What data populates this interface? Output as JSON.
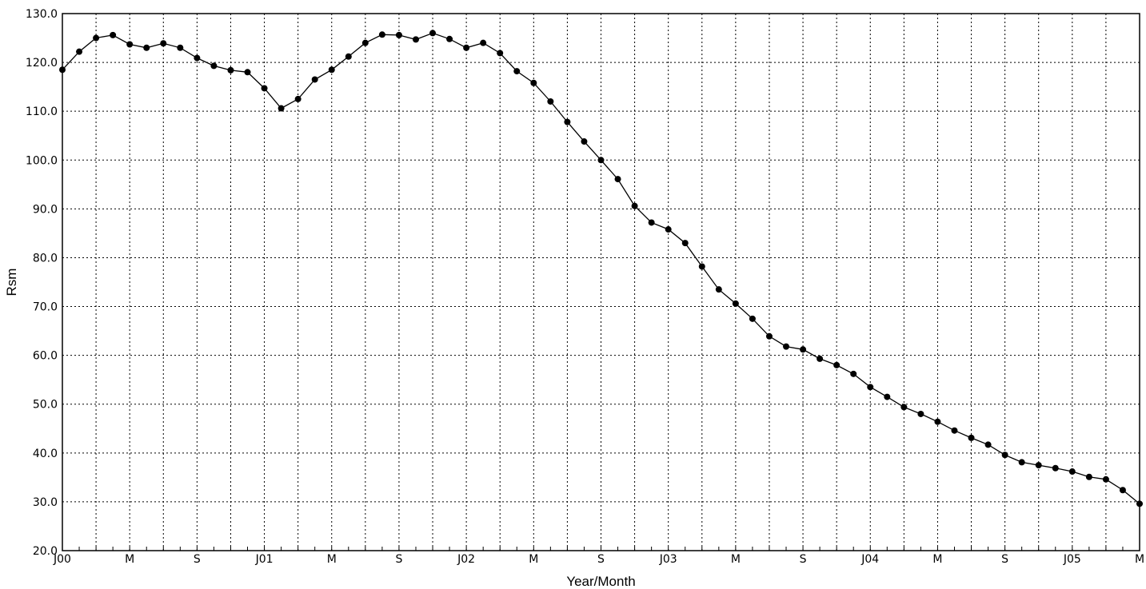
{
  "chart_data": {
    "type": "line",
    "title": "",
    "xlabel": "Year/Month",
    "ylabel": "Rsm",
    "ylim": [
      20,
      130
    ],
    "yticks": [
      "20.0",
      "30.0",
      "40.0",
      "50.0",
      "60.0",
      "70.0",
      "80.0",
      "90.0",
      "100.0",
      "110.0",
      "120.0",
      "130.0"
    ],
    "x_range": [
      "2000-01",
      "2005-05"
    ],
    "xtick_labels": [
      "J00",
      "M",
      "S",
      "J01",
      "M",
      "S",
      "J02",
      "M",
      "S",
      "J03",
      "M",
      "S",
      "J04",
      "M",
      "S",
      "J05",
      "M"
    ],
    "grid": true,
    "legend": "none",
    "colors": {
      "line": "#000000",
      "marker": "#000000",
      "grid": "#000000"
    },
    "series": [
      {
        "x": [
          "2000-01",
          "2000-02",
          "2000-03",
          "2000-04",
          "2000-05",
          "2000-06",
          "2000-07",
          "2000-08",
          "2000-09",
          "2000-10",
          "2000-11",
          "2000-12",
          "2001-01",
          "2001-02",
          "2001-03",
          "2001-04",
          "2001-05",
          "2001-06",
          "2001-07",
          "2001-08",
          "2001-09",
          "2001-10",
          "2001-11",
          "2001-12",
          "2002-01",
          "2002-02",
          "2002-03",
          "2002-04",
          "2002-05",
          "2002-06",
          "2002-07",
          "2002-08",
          "2002-09",
          "2002-10",
          "2002-11",
          "2002-12",
          "2003-01",
          "2003-02",
          "2003-03",
          "2003-04",
          "2003-05",
          "2003-06",
          "2003-07",
          "2003-08",
          "2003-09",
          "2003-10",
          "2003-11",
          "2003-12",
          "2004-01",
          "2004-02",
          "2004-03",
          "2004-04",
          "2004-05",
          "2004-06",
          "2004-07",
          "2004-08",
          "2004-09",
          "2004-10",
          "2004-11",
          "2004-12",
          "2005-01",
          "2005-02",
          "2005-03",
          "2005-04",
          "2005-05"
        ],
        "values": [
          118.5,
          122.2,
          125.0,
          125.6,
          123.7,
          123.0,
          123.9,
          123.0,
          120.9,
          119.3,
          118.4,
          118.0,
          114.7,
          110.6,
          112.5,
          116.5,
          118.5,
          121.2,
          124.0,
          125.7,
          125.6,
          124.7,
          126.0,
          124.8,
          123.0,
          124.0,
          121.9,
          118.2,
          115.8,
          112.0,
          107.8,
          103.8,
          100.0,
          96.1,
          90.6,
          87.2,
          85.8,
          83.0,
          78.2,
          73.5,
          70.6,
          67.5,
          63.9,
          61.8,
          61.2,
          59.3,
          58.0,
          56.2,
          53.5,
          51.5,
          49.4,
          48.0,
          46.4,
          44.6,
          43.1,
          41.7,
          39.6,
          38.1,
          37.5,
          36.9,
          36.2,
          35.1,
          34.6,
          32.4,
          29.6
        ]
      }
    ]
  }
}
